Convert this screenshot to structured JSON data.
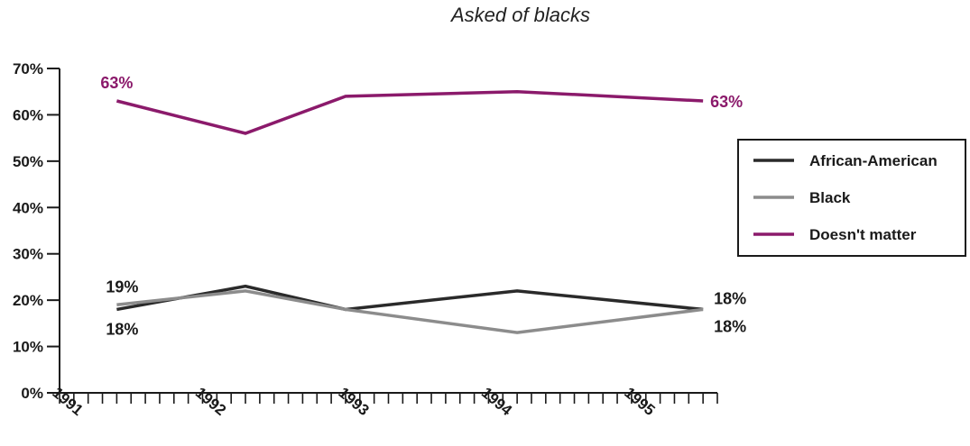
{
  "chart_data": {
    "type": "line",
    "title": "Asked of blacks",
    "x_tick_labels": [
      "1991",
      "1992",
      "1993",
      "1994",
      "1995"
    ],
    "x_points": [
      1991.4,
      1992.3,
      1993.0,
      1994.2,
      1995.5
    ],
    "xlim": [
      1991,
      1995.6
    ],
    "ylim": [
      0,
      70
    ],
    "y_ticks": [
      0,
      10,
      20,
      30,
      40,
      50,
      60,
      70
    ],
    "y_tick_labels": [
      "0%",
      "10%",
      "20%",
      "30%",
      "40%",
      "50%",
      "60%",
      "70%"
    ],
    "series": [
      {
        "name": "African-American",
        "color": "#2a2a2a",
        "values": [
          18,
          23,
          18,
          22,
          18
        ]
      },
      {
        "name": "Black",
        "color": "#8c8c8c",
        "values": [
          19,
          22,
          18,
          13,
          18
        ]
      },
      {
        "name": "Doesn't matter",
        "color": "#8b1a6b",
        "values": [
          63,
          56,
          64,
          65,
          63
        ]
      }
    ],
    "data_labels": [
      {
        "text": "63%",
        "series": "Doesn't matter",
        "point": "first",
        "color": "#8b1a6b"
      },
      {
        "text": "63%",
        "series": "Doesn't matter",
        "point": "last",
        "color": "#8b1a6b"
      },
      {
        "text": "19%",
        "series": "Black",
        "point": "first",
        "color": "#1a1a1a"
      },
      {
        "text": "18%",
        "series": "African-American",
        "point": "first",
        "color": "#1a1a1a"
      },
      {
        "text": "18%",
        "series": "African-American",
        "point": "last",
        "color": "#1a1a1a"
      },
      {
        "text": "18%",
        "series": "Black",
        "point": "last",
        "color": "#1a1a1a"
      }
    ],
    "legend": {
      "position": "right",
      "entries": [
        "African-American",
        "Black",
        "Doesn't matter"
      ]
    },
    "grid": false
  }
}
